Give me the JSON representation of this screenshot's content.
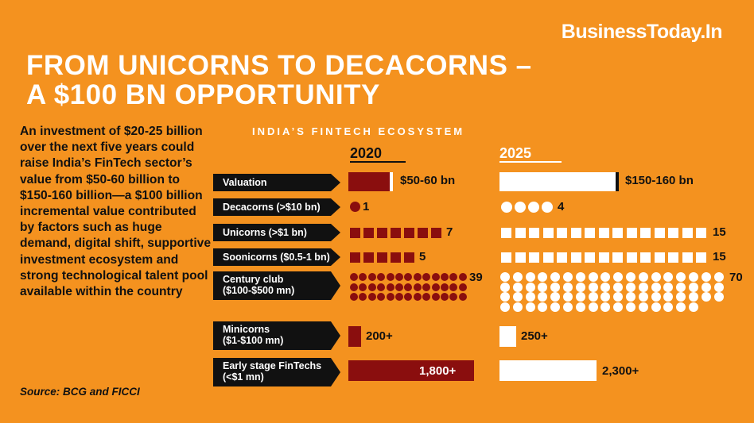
{
  "brand": "BusinessToday.In",
  "title_line1": "FROM UNICORNS TO DECACORNS –",
  "title_line2": "A $100 BN OPPORTUNITY",
  "body_text": "An investment of $20-25 billion over the next five years could raise India’s FinTech sector’s value from $50-60 billion to $150-160 billion—a $100 billion incremental value contributed by factors such as huge demand, digital shift, supportive investment ecosystem and strong technological talent pool available within the country",
  "source": "Source: BCG and FICCI",
  "colors": {
    "background": "#f4921f",
    "y2020": "#8a0e0e",
    "y2025": "#ffffff",
    "label_bg": "#111111"
  },
  "chart_data": {
    "type": "table",
    "title": "INDIA’S FINTECH ECOSYSTEM",
    "columns": [
      "2020",
      "2025"
    ],
    "rows": [
      {
        "label": "Valuation",
        "v2020": "$50-60 bn",
        "v2025": "$150-160 bn",
        "n2020": 55,
        "n2025": 155,
        "kind": "bar"
      },
      {
        "label": "Decacorns (>$10 bn)",
        "v2020": "1",
        "v2025": "4",
        "n2020": 1,
        "n2025": 4,
        "kind": "dots"
      },
      {
        "label": "Unicorns (>$1 bn)",
        "v2020": "7",
        "v2025": "15",
        "n2020": 7,
        "n2025": 15,
        "kind": "squares"
      },
      {
        "label": "Soonicorns ($0.5-1 bn)",
        "v2020": "5",
        "v2025": "15",
        "n2020": 5,
        "n2025": 15,
        "kind": "squares"
      },
      {
        "label_line1": "Century club",
        "label_line2": "($100-$500 mn)",
        "v2020": "39",
        "v2025": "70",
        "n2020": 39,
        "n2025": 70,
        "kind": "dots"
      },
      {
        "label_line1": "Minicorns",
        "label_line2": "($1-$100 mn)",
        "v2020": "200+",
        "v2025": "250+",
        "n2020": 200,
        "n2025": 250,
        "kind": "bar"
      },
      {
        "label_line1": "Early stage FinTechs",
        "label_line2": "(<$1 mn)",
        "v2020": "1,800+",
        "v2025": "2,300+",
        "n2020": 1800,
        "n2025": 2300,
        "kind": "bar"
      }
    ]
  }
}
